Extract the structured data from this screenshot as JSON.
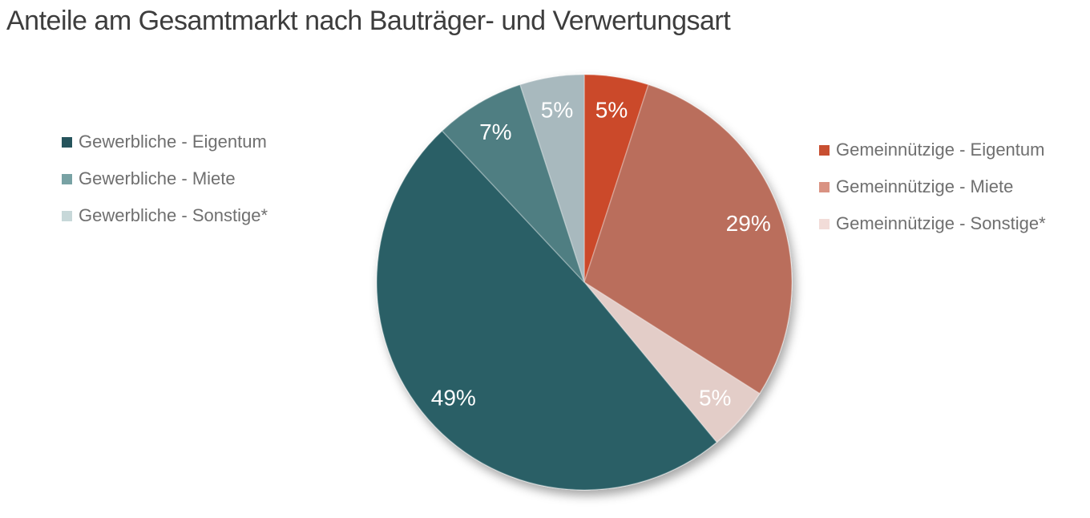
{
  "title": "Anteile am Gesamtmarkt nach Bauträger- und Verwertungsart",
  "chart_data": {
    "type": "pie",
    "title": "Anteile am Gesamtmarkt nach Bauträger- und Verwertungsart",
    "unit": "percent",
    "start_angle_deg": 0,
    "direction": "clockwise",
    "slices": [
      {
        "label": "Gemeinnützige - Eigentum",
        "value": 5,
        "data_label": "5%",
        "color": "#cb4a2c"
      },
      {
        "label": "Gemeinnützige - Miete",
        "value": 29,
        "data_label": "29%",
        "color": "#ba6e5b"
      },
      {
        "label": "Gemeinnützige - Sonstige*",
        "value": 5,
        "data_label": "5%",
        "color": "#e3cdc8"
      },
      {
        "label": "Gewerbliche - Eigentum",
        "value": 49,
        "data_label": "49%",
        "color": "#295f66"
      },
      {
        "label": "Gewerbliche - Miete",
        "value": 7,
        "data_label": "7%",
        "color": "#4f7e82"
      },
      {
        "label": "Gewerbliche - Sonstige*",
        "value": 5,
        "data_label": "5%",
        "color": "#a8b9be"
      }
    ],
    "data_label_color": "#ffffff",
    "label_radius_fraction": 0.84,
    "legend_position": "left-and-right",
    "legend_left": [
      {
        "label": "Gewerbliche - Eigentum",
        "swatch_color": "#26545c"
      },
      {
        "label": "Gewerbliche - Miete",
        "swatch_color": "#78a2a4"
      },
      {
        "label": "Gewerbliche - Sonstige*",
        "swatch_color": "#c7d8d9"
      }
    ],
    "legend_right": [
      {
        "label": "Gemeinnützige - Eigentum",
        "swatch_color": "#c84f31"
      },
      {
        "label": "Gemeinnützige - Miete",
        "swatch_color": "#d99282"
      },
      {
        "label": "Gemeinnützige - Sonstige*",
        "swatch_color": "#f2dcd8"
      }
    ]
  },
  "colors": {
    "background": "#ffffff",
    "title_text": "#3d3d3d",
    "legend_text": "#6f6f6f"
  }
}
